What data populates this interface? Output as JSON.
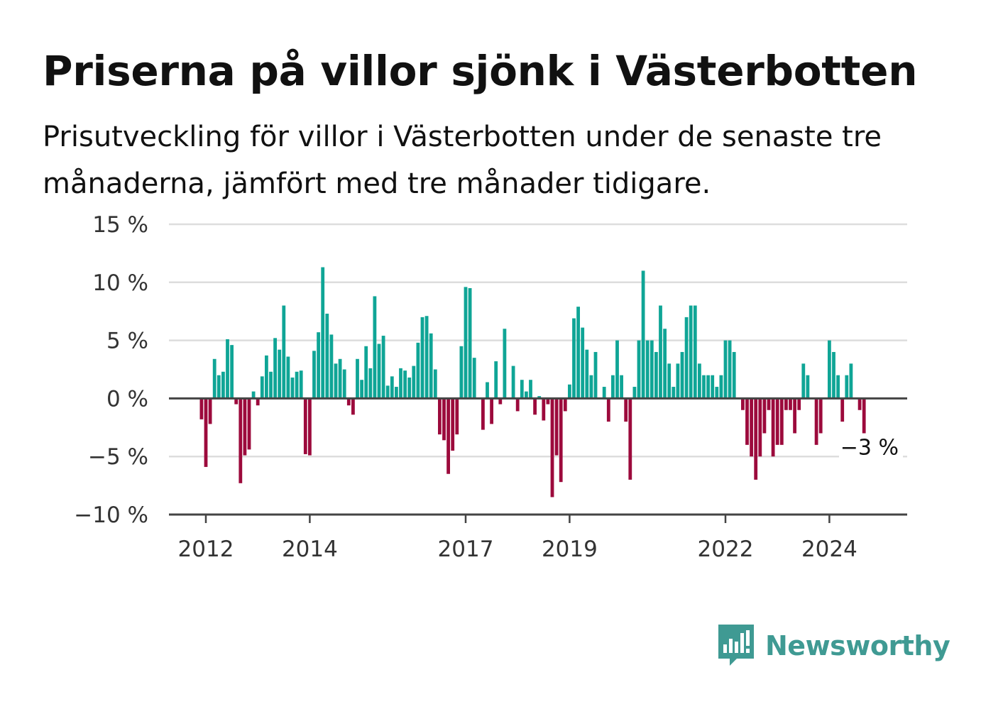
{
  "title": "Priserna på villor sjönk i Västerbotten",
  "subtitle": "Prisutveckling för villor i Västerbotten under de senaste tre månaderna, jämfört med tre månader tidigare.",
  "brand": {
    "name": "Newsworthy",
    "icon": "newsworthy-bars-icon",
    "color": "#3f9a93"
  },
  "colors": {
    "positive": "#0fa596",
    "negative": "#9c0a3c",
    "grid": "#dddddd",
    "axis": "#444444"
  },
  "chart_data": {
    "type": "bar",
    "title": "Priserna på villor sjönk i Västerbotten",
    "xlabel": "",
    "ylabel": "",
    "ylim": [
      -10,
      15
    ],
    "yticks": [
      {
        "value": 15,
        "label": "15 %"
      },
      {
        "value": 10,
        "label": "10 %"
      },
      {
        "value": 5,
        "label": "5 %"
      },
      {
        "value": 0,
        "label": "0 %"
      },
      {
        "value": -5,
        "label": "−5 %"
      },
      {
        "value": -10,
        "label": "−10 %"
      }
    ],
    "xticks": [
      {
        "year": 2012,
        "label": "2012"
      },
      {
        "year": 2014,
        "label": "2014"
      },
      {
        "year": 2017,
        "label": "2017"
      },
      {
        "year": 2019,
        "label": "2019"
      },
      {
        "year": 2022,
        "label": "2022"
      },
      {
        "year": 2024,
        "label": "2024"
      }
    ],
    "grid": true,
    "start_month": "2011-12",
    "last_label": "−3 %",
    "values": [
      -1.8,
      -5.9,
      -2.2,
      3.4,
      2.0,
      2.3,
      5.1,
      4.6,
      -0.5,
      -7.3,
      -4.9,
      -4.4,
      0.6,
      -0.6,
      1.9,
      3.7,
      2.3,
      5.2,
      4.2,
      8.0,
      3.6,
      1.8,
      2.3,
      2.4,
      -4.8,
      -4.9,
      4.1,
      5.7,
      11.3,
      7.3,
      5.5,
      3.0,
      3.4,
      2.5,
      -0.6,
      -1.4,
      3.4,
      1.6,
      4.5,
      2.6,
      8.8,
      4.7,
      5.4,
      1.1,
      1.9,
      1.0,
      2.6,
      2.4,
      1.8,
      2.8,
      4.8,
      7.0,
      7.1,
      5.6,
      2.5,
      -3.1,
      -3.6,
      -6.5,
      -4.5,
      -3.1,
      4.5,
      9.6,
      9.5,
      3.5,
      0,
      -2.7,
      1.4,
      -2.2,
      3.2,
      -0.5,
      6.0,
      0,
      2.8,
      -1.1,
      1.6,
      0.6,
      1.6,
      -1.4,
      0.2,
      -1.9,
      -0.5,
      -8.5,
      -4.9,
      -7.2,
      -1.1,
      1.2,
      6.9,
      7.9,
      6.1,
      4.2,
      2.0,
      4.0,
      0,
      1.0,
      -2.0,
      2.0,
      5.0,
      2.0,
      -2.0,
      -7.0,
      1.0,
      5.0,
      11.0,
      5.0,
      5.0,
      4.0,
      8.0,
      6.0,
      3.0,
      1.0,
      3.0,
      4.0,
      7.0,
      8.0,
      8.0,
      3.0,
      2.0,
      2.0,
      2.0,
      1.0,
      2.0,
      5.0,
      5.0,
      4.0,
      0,
      -1.0,
      -4.0,
      -5.0,
      -7.0,
      -5.0,
      -3.0,
      -1.0,
      -5.0,
      -4.0,
      -4.0,
      -1.0,
      -1.0,
      -3.0,
      -1.0,
      3.0,
      2.0,
      0,
      -4.0,
      -3.0,
      0,
      5.0,
      4.0,
      2.0,
      -2.0,
      2.0,
      3.0,
      0,
      -1.0,
      -3.0
    ]
  }
}
